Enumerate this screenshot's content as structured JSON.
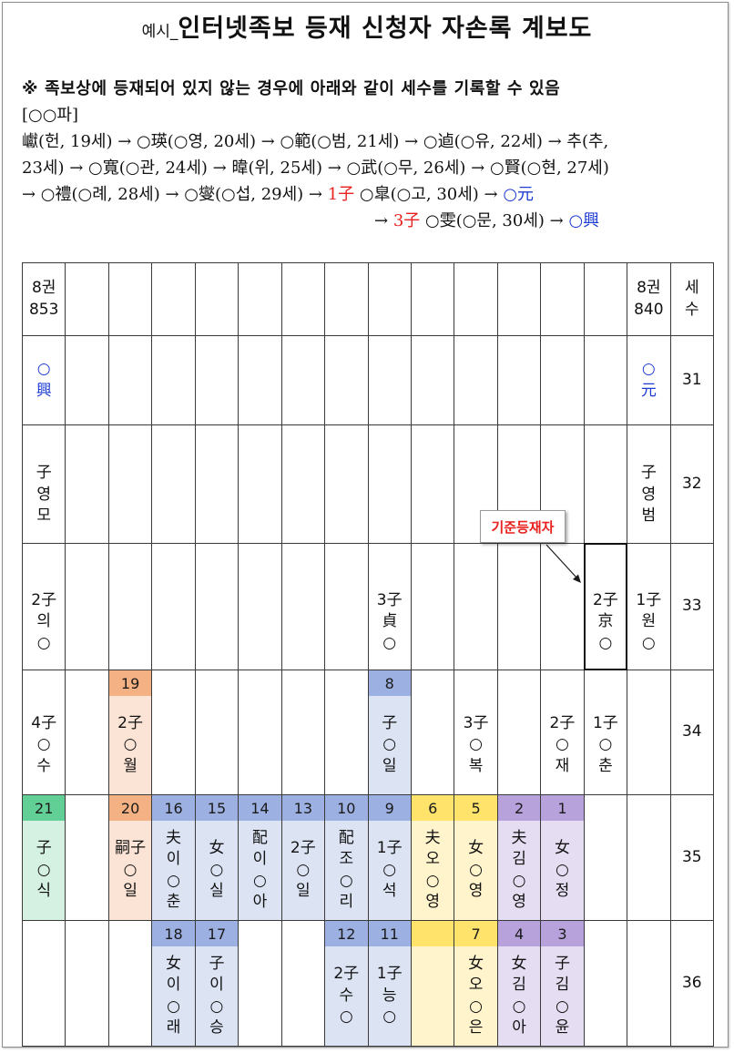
{
  "title": {
    "prefix": "예시_",
    "main": "인터넷족보 등재 신청자 자손록 계보도"
  },
  "note": "※ 족보상에 등재되어 있지 않는 경우에 아래와 같이 세수를 기록할 수 있음",
  "branch": "[○○파]",
  "lineage": {
    "line1": "巘(헌, 19세) → ○瑛(○영, 20세) → ○範(○범, 21세) → ○逌(○유, 22세) → 추(추,",
    "line2": "23세) → ○寬(○관, 24세) → 暐(위, 25세) → ○武(○무, 26세) → ○賢(○현, 27세)",
    "line3": {
      "lead": "→ ○禮(○례, 28세) → ○燮(○섭, 29세) → ",
      "order": "1子",
      "mid": " ○皐(○고, 30세) → ",
      "end": "○元"
    },
    "line4": {
      "lead": "→ ",
      "order": "3子",
      "mid": " ○雯(○문, 30세) → ",
      "end": "○興"
    }
  },
  "callout": "기준등재자",
  "colors": {
    "red": "#e8201e",
    "blue": "#1e3cd2",
    "grid": "#3a3a3a",
    "highlight": "#111111"
  },
  "palette": {
    "orange": {
      "header": "#f4b183",
      "body": "#fbe4d5"
    },
    "blue": {
      "header": "#9db0e2",
      "body": "#dce4f4"
    },
    "green": {
      "header": "#62cf97",
      "body": "#d4f1e2"
    },
    "yellow": {
      "header": "#ffe36b",
      "body": "#fff4cc"
    },
    "purple": {
      "header": "#b7a2dc",
      "body": "#e5ddf1"
    }
  },
  "table": {
    "rows": [
      {
        "cells": [
          {
            "text": "8권\n853"
          },
          null,
          null,
          null,
          null,
          null,
          null,
          null,
          null,
          null,
          null,
          null,
          null,
          null,
          {
            "text": "8권\n840"
          },
          {
            "text": "세\n수"
          }
        ]
      },
      {
        "cells": [
          {
            "text": "○\n興",
            "ink": "blue"
          },
          null,
          null,
          null,
          null,
          null,
          null,
          null,
          null,
          null,
          null,
          null,
          null,
          null,
          {
            "text": "○\n元",
            "ink": "blue"
          },
          {
            "text": "31"
          }
        ]
      },
      {
        "cells": [
          {
            "text": "子\n영\n모"
          },
          null,
          null,
          null,
          null,
          null,
          null,
          null,
          null,
          null,
          null,
          null,
          null,
          null,
          {
            "text": "子\n영\n범"
          },
          {
            "text": "32"
          }
        ]
      },
      {
        "cells": [
          {
            "text": "2子\n의\n○"
          },
          null,
          null,
          null,
          null,
          null,
          null,
          null,
          {
            "text": "3子\n貞\n○"
          },
          null,
          null,
          null,
          null,
          {
            "text": "2子\n京\n○",
            "highlight": true
          },
          {
            "text": "1子\n원\n○"
          },
          {
            "text": "33"
          }
        ]
      },
      {
        "cells": [
          {
            "text": "4子\n○\n수"
          },
          null,
          {
            "num": "19",
            "color": "orange",
            "text": "2子\n○\n월"
          },
          null,
          null,
          null,
          null,
          null,
          {
            "num": "8",
            "color": "blue",
            "text": "子\n○\n일"
          },
          null,
          {
            "text": "3子\n○\n복"
          },
          null,
          {
            "text": "2子\n○\n재"
          },
          {
            "text": "1子\n○\n춘"
          },
          null,
          {
            "text": "34"
          }
        ]
      },
      {
        "cells": [
          {
            "num": "21",
            "color": "green",
            "text": "子\n○\n식"
          },
          null,
          {
            "num": "20",
            "color": "orange",
            "text": "嗣子\n○\n일"
          },
          {
            "num": "16",
            "color": "blue",
            "text": "夫\n이\n○\n춘"
          },
          {
            "num": "15",
            "color": "blue",
            "text": "女\n○\n실"
          },
          {
            "num": "14",
            "color": "blue",
            "text": "配\n이\n○\n아"
          },
          {
            "num": "13",
            "color": "blue",
            "text": "2子\n○\n일"
          },
          {
            "num": "10",
            "color": "blue",
            "text": "配\n조\n○\n리"
          },
          {
            "num": "9",
            "color": "blue",
            "text": "1子\n○\n석"
          },
          {
            "num": "6",
            "color": "yellow",
            "text": "夫\n오\n○\n영"
          },
          {
            "num": "5",
            "color": "yellow",
            "text": "女\n○\n영"
          },
          {
            "num": "2",
            "color": "purple",
            "text": "夫\n김\n○\n영"
          },
          {
            "num": "1",
            "color": "purple",
            "text": "女\n○\n정"
          },
          null,
          null,
          {
            "text": "35"
          }
        ]
      },
      {
        "cells": [
          null,
          null,
          null,
          {
            "num": "18",
            "color": "blue",
            "text": "女\n이\n○\n래"
          },
          {
            "num": "17",
            "color": "blue",
            "text": "子\n이\n○\n승"
          },
          null,
          null,
          {
            "num": "12",
            "color": "blue",
            "text": "2子\n수\n○"
          },
          {
            "num": "11",
            "color": "blue",
            "text": "1子\n능\n○"
          },
          {
            "color": "yellow"
          },
          {
            "num": "7",
            "color": "yellow",
            "text": "女\n오\n○\n은"
          },
          {
            "num": "4",
            "color": "purple",
            "text": "女\n김\n○\n아"
          },
          {
            "num": "3",
            "color": "purple",
            "text": "子\n김\n○\n윤"
          },
          null,
          null,
          {
            "text": "36"
          }
        ]
      }
    ]
  }
}
